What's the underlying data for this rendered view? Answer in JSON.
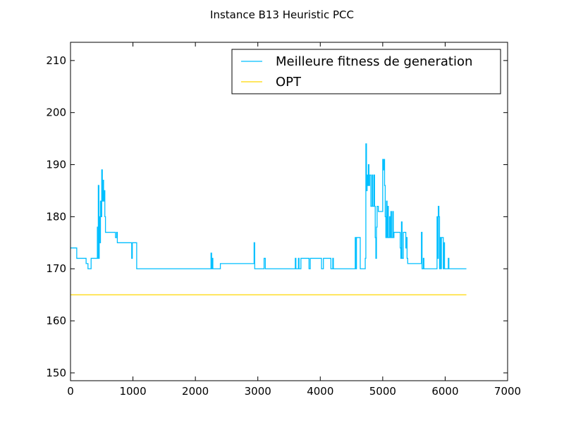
{
  "chart_data": {
    "type": "line",
    "title": "Instance B13 Heuristic PCC",
    "xlabel": "",
    "ylabel": "",
    "xlim": [
      0,
      7000
    ],
    "ylim": [
      148.5,
      213.5
    ],
    "x_ticks": [
      0,
      1000,
      2000,
      3000,
      4000,
      5000,
      6000,
      7000
    ],
    "y_ticks": [
      150,
      160,
      170,
      180,
      190,
      200,
      210
    ],
    "x_tick_labels": [
      "0",
      "1000",
      "2000",
      "3000",
      "4000",
      "5000",
      "6000",
      "7000"
    ],
    "y_tick_labels": [
      "150",
      "160",
      "170",
      "180",
      "190",
      "200",
      "210"
    ],
    "grid": false,
    "legend_position": "top-right",
    "series": [
      {
        "name": "Meilleure fitness de generation",
        "color": "#00bfff",
        "points": [
          [
            0,
            174
          ],
          [
            100,
            174
          ],
          [
            100,
            172
          ],
          [
            250,
            172
          ],
          [
            250,
            171
          ],
          [
            280,
            171
          ],
          [
            280,
            170
          ],
          [
            330,
            170
          ],
          [
            330,
            172
          ],
          [
            430,
            172
          ],
          [
            430,
            178
          ],
          [
            440,
            178
          ],
          [
            440,
            172
          ],
          [
            445,
            172
          ],
          [
            445,
            186
          ],
          [
            455,
            186
          ],
          [
            455,
            172
          ],
          [
            460,
            172
          ],
          [
            460,
            180
          ],
          [
            470,
            180
          ],
          [
            470,
            175
          ],
          [
            480,
            175
          ],
          [
            480,
            183
          ],
          [
            490,
            183
          ],
          [
            490,
            180
          ],
          [
            500,
            180
          ],
          [
            500,
            189
          ],
          [
            510,
            189
          ],
          [
            510,
            183
          ],
          [
            520,
            183
          ],
          [
            520,
            187
          ],
          [
            530,
            187
          ],
          [
            530,
            183
          ],
          [
            540,
            183
          ],
          [
            540,
            185
          ],
          [
            550,
            185
          ],
          [
            550,
            180
          ],
          [
            560,
            180
          ],
          [
            560,
            177
          ],
          [
            720,
            177
          ],
          [
            720,
            176
          ],
          [
            740,
            176
          ],
          [
            740,
            177
          ],
          [
            750,
            177
          ],
          [
            750,
            175
          ],
          [
            980,
            175
          ],
          [
            980,
            172
          ],
          [
            990,
            172
          ],
          [
            990,
            175
          ],
          [
            1060,
            175
          ],
          [
            1060,
            170
          ],
          [
            2250,
            170
          ],
          [
            2250,
            173
          ],
          [
            2260,
            173
          ],
          [
            2260,
            170
          ],
          [
            2270,
            170
          ],
          [
            2270,
            172
          ],
          [
            2280,
            172
          ],
          [
            2280,
            170
          ],
          [
            2400,
            170
          ],
          [
            2400,
            171
          ],
          [
            2940,
            171
          ],
          [
            2940,
            175
          ],
          [
            2950,
            175
          ],
          [
            2950,
            170
          ],
          [
            3100,
            170
          ],
          [
            3100,
            172
          ],
          [
            3120,
            172
          ],
          [
            3120,
            170
          ],
          [
            3600,
            170
          ],
          [
            3600,
            172
          ],
          [
            3610,
            172
          ],
          [
            3610,
            170
          ],
          [
            3650,
            170
          ],
          [
            3650,
            172
          ],
          [
            3660,
            172
          ],
          [
            3660,
            170
          ],
          [
            3690,
            170
          ],
          [
            3690,
            172
          ],
          [
            3820,
            172
          ],
          [
            3820,
            170
          ],
          [
            3840,
            170
          ],
          [
            3840,
            172
          ],
          [
            4020,
            172
          ],
          [
            4020,
            170
          ],
          [
            4050,
            170
          ],
          [
            4050,
            172
          ],
          [
            4170,
            172
          ],
          [
            4170,
            170
          ],
          [
            4200,
            170
          ],
          [
            4200,
            172
          ],
          [
            4210,
            172
          ],
          [
            4210,
            170
          ],
          [
            4560,
            170
          ],
          [
            4560,
            176
          ],
          [
            4570,
            176
          ],
          [
            4570,
            170
          ],
          [
            4580,
            170
          ],
          [
            4580,
            176
          ],
          [
            4640,
            176
          ],
          [
            4640,
            170
          ],
          [
            4720,
            170
          ],
          [
            4720,
            172
          ],
          [
            4730,
            172
          ],
          [
            4730,
            194
          ],
          [
            4740,
            194
          ],
          [
            4740,
            185
          ],
          [
            4750,
            185
          ],
          [
            4750,
            188
          ],
          [
            4760,
            188
          ],
          [
            4760,
            186
          ],
          [
            4770,
            186
          ],
          [
            4770,
            190
          ],
          [
            4780,
            190
          ],
          [
            4780,
            186
          ],
          [
            4790,
            186
          ],
          [
            4790,
            188
          ],
          [
            4810,
            188
          ],
          [
            4810,
            182
          ],
          [
            4830,
            182
          ],
          [
            4830,
            188
          ],
          [
            4840,
            188
          ],
          [
            4840,
            182
          ],
          [
            4860,
            182
          ],
          [
            4860,
            188
          ],
          [
            4870,
            188
          ],
          [
            4870,
            182
          ],
          [
            4880,
            182
          ],
          [
            4880,
            176
          ],
          [
            4890,
            176
          ],
          [
            4890,
            172
          ],
          [
            4900,
            172
          ],
          [
            4900,
            178
          ],
          [
            4910,
            178
          ],
          [
            4910,
            182
          ],
          [
            4930,
            182
          ],
          [
            4930,
            181
          ],
          [
            5000,
            181
          ],
          [
            5000,
            191
          ],
          [
            5010,
            191
          ],
          [
            5010,
            189
          ],
          [
            5020,
            189
          ],
          [
            5020,
            191
          ],
          [
            5030,
            191
          ],
          [
            5030,
            186
          ],
          [
            5040,
            186
          ],
          [
            5040,
            180
          ],
          [
            5050,
            180
          ],
          [
            5050,
            176
          ],
          [
            5060,
            176
          ],
          [
            5060,
            183
          ],
          [
            5070,
            183
          ],
          [
            5070,
            176
          ],
          [
            5080,
            176
          ],
          [
            5080,
            182
          ],
          [
            5090,
            182
          ],
          [
            5090,
            176
          ],
          [
            5110,
            176
          ],
          [
            5110,
            180
          ],
          [
            5120,
            180
          ],
          [
            5120,
            176
          ],
          [
            5130,
            176
          ],
          [
            5130,
            181
          ],
          [
            5140,
            181
          ],
          [
            5140,
            176
          ],
          [
            5160,
            176
          ],
          [
            5160,
            181
          ],
          [
            5170,
            181
          ],
          [
            5170,
            176
          ],
          [
            5180,
            176
          ],
          [
            5180,
            177
          ],
          [
            5280,
            177
          ],
          [
            5280,
            174
          ],
          [
            5290,
            174
          ],
          [
            5290,
            172
          ],
          [
            5300,
            172
          ],
          [
            5300,
            179
          ],
          [
            5310,
            179
          ],
          [
            5310,
            172
          ],
          [
            5330,
            172
          ],
          [
            5330,
            177
          ],
          [
            5370,
            177
          ],
          [
            5370,
            174
          ],
          [
            5380,
            174
          ],
          [
            5380,
            176
          ],
          [
            5390,
            176
          ],
          [
            5390,
            172
          ],
          [
            5400,
            172
          ],
          [
            5400,
            171
          ],
          [
            5620,
            171
          ],
          [
            5620,
            177
          ],
          [
            5630,
            177
          ],
          [
            5630,
            170
          ],
          [
            5650,
            170
          ],
          [
            5650,
            172
          ],
          [
            5660,
            172
          ],
          [
            5660,
            170
          ],
          [
            5870,
            170
          ],
          [
            5870,
            180
          ],
          [
            5880,
            180
          ],
          [
            5880,
            172
          ],
          [
            5890,
            172
          ],
          [
            5890,
            182
          ],
          [
            5900,
            182
          ],
          [
            5900,
            180
          ],
          [
            5910,
            180
          ],
          [
            5910,
            170
          ],
          [
            5920,
            170
          ],
          [
            5920,
            176
          ],
          [
            5930,
            176
          ],
          [
            5930,
            170
          ],
          [
            5940,
            170
          ],
          [
            5940,
            176
          ],
          [
            5970,
            176
          ],
          [
            5970,
            170
          ],
          [
            5980,
            170
          ],
          [
            5980,
            175
          ],
          [
            5990,
            175
          ],
          [
            5990,
            170
          ],
          [
            6050,
            170
          ],
          [
            6050,
            172
          ],
          [
            6060,
            172
          ],
          [
            6060,
            170
          ],
          [
            6340,
            170
          ]
        ]
      },
      {
        "name": "OPT",
        "color": "#ffd700",
        "points": [
          [
            0,
            165
          ],
          [
            6340,
            165
          ]
        ]
      }
    ]
  }
}
